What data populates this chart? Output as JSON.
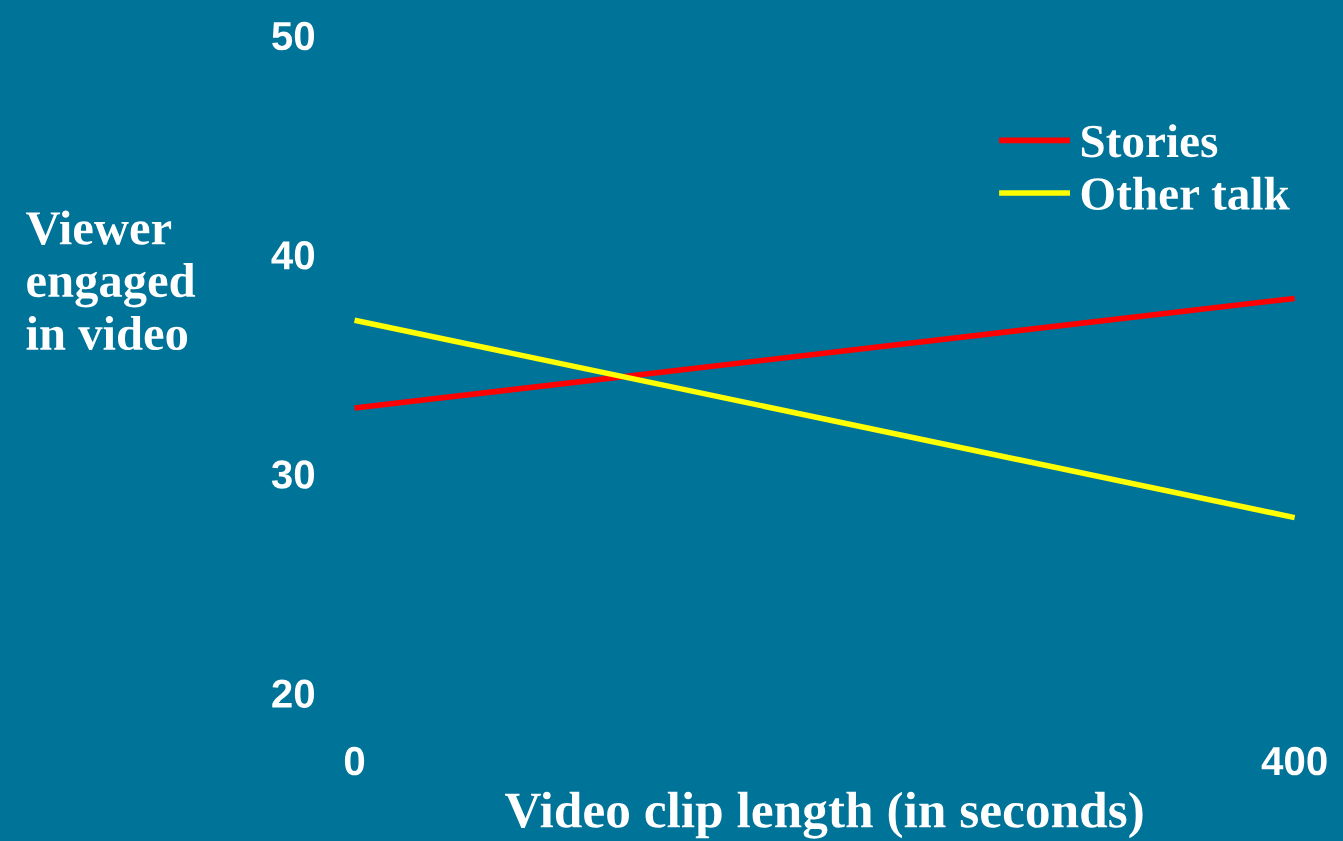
{
  "chart_data": {
    "type": "line",
    "xlabel": "Video clip length (in seconds)",
    "ylabel": "Viewer\nengaged\nin video",
    "x": [
      0,
      400
    ],
    "series": [
      {
        "name": "Stories",
        "color": "#ff0000",
        "values": [
          33,
          38
        ]
      },
      {
        "name": "Other talk",
        "color": "#ffff00",
        "values": [
          37,
          28
        ]
      }
    ],
    "xlim": [
      0,
      400
    ],
    "xticks": [
      0,
      400
    ],
    "ylim": [
      20,
      50
    ],
    "yticks": [
      20,
      30,
      40,
      50
    ],
    "grid": false,
    "legend": "top right",
    "marker": "none",
    "line_style": "solid"
  }
}
